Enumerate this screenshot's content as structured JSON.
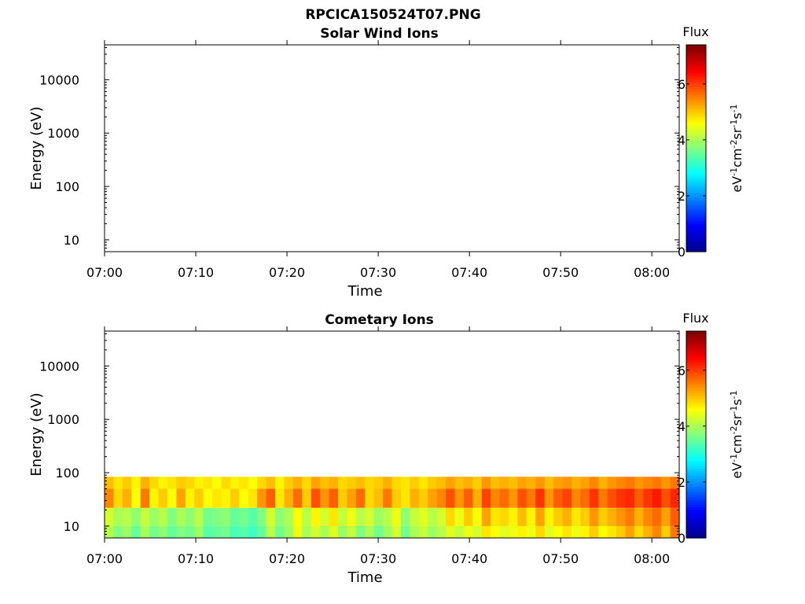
{
  "figure": {
    "title": "RPCICA150524T07.PNG"
  },
  "colormap": [
    "#00008f",
    "#0000ff",
    "#0080ff",
    "#00ffff",
    "#80ff80",
    "#ffff00",
    "#ff8000",
    "#ff0000",
    "#800000"
  ],
  "chart_data": [
    {
      "type": "heatmap",
      "title": "Solar Wind Ions",
      "xlabel": "Time",
      "ylabel": "Energy (eV)",
      "x_ticks": [
        "07:00",
        "07:10",
        "07:20",
        "07:30",
        "07:40",
        "07:50",
        "08:00"
      ],
      "xlim": [
        "07:00",
        "08:03"
      ],
      "y_scale": "log",
      "y_ticks": [
        "10",
        "100",
        "1000",
        "10000"
      ],
      "ylim": [
        6,
        45000
      ],
      "colorbar": {
        "label": "Flux",
        "units": "eV-1cm-2sr-1s-1",
        "ticks": [
          "0",
          "2",
          "4",
          "6"
        ],
        "range": [
          0,
          7.4
        ]
      },
      "bands": []
    },
    {
      "type": "heatmap",
      "title": "Cometary Ions",
      "xlabel": "Time",
      "ylabel": "Energy (eV)",
      "x_ticks": [
        "07:00",
        "07:10",
        "07:20",
        "07:30",
        "07:40",
        "07:50",
        "08:00"
      ],
      "xlim": [
        "07:00",
        "08:03"
      ],
      "y_scale": "log",
      "y_ticks": [
        "10",
        "100",
        "1000",
        "10000"
      ],
      "ylim": [
        6,
        45000
      ],
      "colorbar": {
        "label": "Flux",
        "units": "eV-1cm-2sr-1s-1",
        "ticks": [
          "0",
          "2",
          "4",
          "6"
        ],
        "range": [
          0,
          7.4
        ]
      },
      "bands": [
        {
          "e_min": 6,
          "e_max": 10,
          "flux": [
            4.1,
            3.7,
            3.9,
            3.5,
            4.0,
            3.6,
            3.8,
            3.5,
            3.7,
            3.6,
            3.9,
            3.4,
            3.5,
            3.6,
            3.3,
            3.4,
            3.2,
            3.5,
            4.1,
            3.6,
            3.9,
            4.5,
            4.0,
            4.3,
            4.0,
            4.4,
            3.9,
            4.2,
            3.7,
            4.0,
            3.6,
            3.9,
            4.3,
            3.6,
            4.0,
            4.2,
            3.9,
            4.1,
            4.4,
            4.2,
            4.5,
            4.3,
            4.8,
            4.6,
            4.4,
            4.5,
            4.7,
            4.5,
            4.9,
            4.4,
            4.6,
            4.8,
            4.5,
            4.7,
            5.0,
            4.6,
            4.8,
            5.0,
            5.3,
            4.9,
            5.2,
            5.5,
            5.0,
            5.6
          ]
        },
        {
          "e_min": 10,
          "e_max": 22,
          "flux": [
            4.3,
            4.0,
            4.1,
            3.8,
            4.2,
            3.9,
            4.1,
            3.7,
            4.0,
            3.8,
            4.1,
            3.6,
            3.7,
            3.8,
            3.5,
            3.6,
            3.4,
            3.7,
            4.3,
            3.8,
            4.0,
            4.6,
            4.1,
            4.7,
            4.3,
            4.8,
            4.2,
            4.5,
            4.1,
            4.3,
            3.9,
            4.1,
            4.5,
            3.8,
            4.2,
            4.4,
            4.1,
            4.3,
            4.9,
            4.5,
            5.0,
            4.6,
            5.3,
            4.8,
            4.9,
            4.7,
            5.1,
            4.7,
            5.3,
            4.7,
            5.0,
            5.2,
            4.8,
            5.0,
            5.4,
            5.0,
            5.2,
            5.4,
            5.6,
            5.2,
            5.5,
            5.7,
            5.3,
            5.8
          ]
        },
        {
          "e_min": 22,
          "e_max": 50,
          "flux": [
            5.5,
            4.9,
            5.2,
            4.6,
            5.6,
            4.7,
            5.0,
            4.6,
            5.3,
            4.7,
            5.0,
            4.6,
            4.8,
            4.7,
            5.0,
            4.6,
            4.8,
            5.4,
            5.8,
            4.8,
            5.2,
            5.7,
            5.0,
            5.9,
            5.4,
            5.8,
            5.0,
            5.3,
            5.7,
            4.9,
            5.1,
            5.6,
            5.0,
            4.8,
            5.2,
            5.0,
            5.3,
            5.5,
            5.9,
            5.4,
            5.8,
            5.2,
            6.0,
            5.5,
            5.7,
            5.4,
            5.9,
            5.6,
            6.1,
            5.4,
            5.8,
            6.0,
            5.5,
            5.7,
            6.1,
            5.6,
            5.9,
            6.1,
            6.2,
            5.8,
            6.1,
            6.3,
            5.9,
            6.2
          ]
        },
        {
          "e_min": 50,
          "e_max": 84,
          "flux": [
            5.1,
            4.8,
            5.0,
            4.7,
            5.2,
            4.9,
            4.7,
            4.8,
            5.0,
            4.9,
            4.7,
            4.8,
            4.6,
            4.9,
            4.7,
            4.8,
            4.6,
            4.9,
            5.1,
            4.7,
            5.0,
            5.2,
            4.9,
            5.3,
            5.1,
            5.2,
            4.9,
            5.0,
            5.1,
            4.9,
            5.0,
            5.2,
            4.9,
            4.8,
            5.0,
            4.8,
            5.0,
            5.1,
            5.3,
            5.1,
            5.2,
            5.0,
            5.4,
            5.1,
            5.2,
            5.1,
            5.3,
            5.2,
            5.4,
            5.1,
            5.3,
            5.4,
            5.2,
            5.3,
            5.5,
            5.2,
            5.4,
            5.5,
            5.6,
            5.4,
            5.5,
            5.6,
            5.4,
            5.6
          ]
        }
      ]
    }
  ]
}
